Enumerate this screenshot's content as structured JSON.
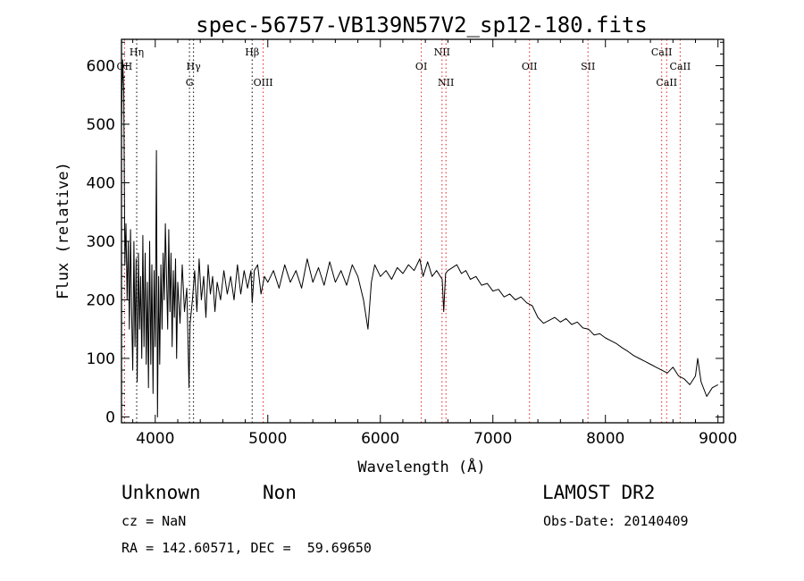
{
  "chart_data": {
    "type": "line",
    "title": "spec-56757-VB139N57V2_sp12-180.fits",
    "xlabel": "Wavelength (Å)",
    "ylabel": "Flux (relative)",
    "xlim": [
      3700,
      9050
    ],
    "ylim": [
      -10,
      645
    ],
    "xticks": [
      4000,
      5000,
      6000,
      7000,
      8000,
      9000
    ],
    "yticks": [
      0,
      100,
      200,
      300,
      400,
      500,
      600
    ],
    "grid": false,
    "series": [
      {
        "name": "",
        "color": "#000000",
        "points": [
          [
            3700,
            500
          ],
          [
            3710,
            610
          ],
          [
            3720,
            560
          ],
          [
            3730,
            260
          ],
          [
            3740,
            330
          ],
          [
            3750,
            200
          ],
          [
            3760,
            300
          ],
          [
            3770,
            150
          ],
          [
            3780,
            320
          ],
          [
            3790,
            180
          ],
          [
            3800,
            80
          ],
          [
            3810,
            300
          ],
          [
            3820,
            120
          ],
          [
            3830,
            270
          ],
          [
            3840,
            60
          ],
          [
            3850,
            280
          ],
          [
            3860,
            150
          ],
          [
            3870,
            240
          ],
          [
            3880,
            100
          ],
          [
            3890,
            310
          ],
          [
            3900,
            120
          ],
          [
            3910,
            280
          ],
          [
            3920,
            90
          ],
          [
            3930,
            230
          ],
          [
            3940,
            50
          ],
          [
            3950,
            300
          ],
          [
            3960,
            90
          ],
          [
            3970,
            260
          ],
          [
            3980,
            40
          ],
          [
            3990,
            250
          ],
          [
            4000,
            120
          ],
          [
            4010,
            455
          ],
          [
            4020,
            0
          ],
          [
            4030,
            240
          ],
          [
            4040,
            90
          ],
          [
            4050,
            260
          ],
          [
            4060,
            150
          ],
          [
            4070,
            280
          ],
          [
            4080,
            200
          ],
          [
            4090,
            330
          ],
          [
            4100,
            240
          ],
          [
            4110,
            150
          ],
          [
            4120,
            320
          ],
          [
            4130,
            180
          ],
          [
            4140,
            280
          ],
          [
            4150,
            120
          ],
          [
            4160,
            250
          ],
          [
            4170,
            170
          ],
          [
            4180,
            270
          ],
          [
            4190,
            100
          ],
          [
            4200,
            230
          ],
          [
            4220,
            160
          ],
          [
            4240,
            260
          ],
          [
            4260,
            180
          ],
          [
            4280,
            220
          ],
          [
            4300,
            50
          ],
          [
            4310,
            160
          ],
          [
            4330,
            200
          ],
          [
            4350,
            250
          ],
          [
            4370,
            180
          ],
          [
            4390,
            270
          ],
          [
            4410,
            200
          ],
          [
            4430,
            240
          ],
          [
            4450,
            170
          ],
          [
            4470,
            260
          ],
          [
            4490,
            210
          ],
          [
            4510,
            240
          ],
          [
            4530,
            180
          ],
          [
            4550,
            230
          ],
          [
            4580,
            200
          ],
          [
            4610,
            250
          ],
          [
            4640,
            210
          ],
          [
            4670,
            240
          ],
          [
            4700,
            200
          ],
          [
            4730,
            260
          ],
          [
            4760,
            210
          ],
          [
            4790,
            250
          ],
          [
            4820,
            220
          ],
          [
            4850,
            250
          ],
          [
            4861,
            195
          ],
          [
            4880,
            250
          ],
          [
            4910,
            260
          ],
          [
            4940,
            210
          ],
          [
            4970,
            240
          ],
          [
            5000,
            230
          ],
          [
            5050,
            250
          ],
          [
            5100,
            220
          ],
          [
            5150,
            260
          ],
          [
            5200,
            230
          ],
          [
            5250,
            250
          ],
          [
            5300,
            220
          ],
          [
            5350,
            270
          ],
          [
            5400,
            230
          ],
          [
            5450,
            255
          ],
          [
            5500,
            225
          ],
          [
            5550,
            265
          ],
          [
            5600,
            230
          ],
          [
            5650,
            250
          ],
          [
            5700,
            225
          ],
          [
            5750,
            260
          ],
          [
            5800,
            240
          ],
          [
            5850,
            200
          ],
          [
            5890,
            150
          ],
          [
            5920,
            230
          ],
          [
            5950,
            260
          ],
          [
            6000,
            240
          ],
          [
            6050,
            250
          ],
          [
            6100,
            235
          ],
          [
            6150,
            255
          ],
          [
            6200,
            245
          ],
          [
            6250,
            260
          ],
          [
            6300,
            250
          ],
          [
            6350,
            270
          ],
          [
            6380,
            240
          ],
          [
            6420,
            265
          ],
          [
            6460,
            240
          ],
          [
            6500,
            250
          ],
          [
            6550,
            235
          ],
          [
            6563,
            180
          ],
          [
            6580,
            245
          ],
          [
            6600,
            250
          ],
          [
            6640,
            255
          ],
          [
            6680,
            260
          ],
          [
            6720,
            245
          ],
          [
            6760,
            250
          ],
          [
            6800,
            235
          ],
          [
            6850,
            240
          ],
          [
            6900,
            225
          ],
          [
            6950,
            228
          ],
          [
            7000,
            215
          ],
          [
            7050,
            218
          ],
          [
            7100,
            205
          ],
          [
            7150,
            210
          ],
          [
            7200,
            200
          ],
          [
            7250,
            205
          ],
          [
            7300,
            195
          ],
          [
            7350,
            190
          ],
          [
            7400,
            170
          ],
          [
            7450,
            160
          ],
          [
            7500,
            165
          ],
          [
            7550,
            170
          ],
          [
            7600,
            162
          ],
          [
            7650,
            168
          ],
          [
            7700,
            158
          ],
          [
            7750,
            162
          ],
          [
            7800,
            152
          ],
          [
            7850,
            150
          ],
          [
            7900,
            140
          ],
          [
            7950,
            142
          ],
          [
            8000,
            135
          ],
          [
            8050,
            130
          ],
          [
            8100,
            125
          ],
          [
            8150,
            118
          ],
          [
            8200,
            112
          ],
          [
            8250,
            105
          ],
          [
            8300,
            100
          ],
          [
            8350,
            95
          ],
          [
            8400,
            90
          ],
          [
            8450,
            85
          ],
          [
            8500,
            80
          ],
          [
            8550,
            75
          ],
          [
            8600,
            85
          ],
          [
            8650,
            70
          ],
          [
            8700,
            65
          ],
          [
            8750,
            55
          ],
          [
            8800,
            70
          ],
          [
            8820,
            100
          ],
          [
            8850,
            60
          ],
          [
            8900,
            35
          ],
          [
            8950,
            50
          ],
          [
            9000,
            55
          ]
        ]
      }
    ],
    "line_markers": [
      {
        "name": "OII",
        "wavelength": 3727,
        "label_row": 2,
        "color": "#e02020"
      },
      {
        "name": "Hη",
        "wavelength": 3835,
        "label_row": 1,
        "color": "#000000"
      },
      {
        "name": "Hγ",
        "wavelength": 4340,
        "label_row": 2,
        "color": "#000000"
      },
      {
        "name": "G",
        "wavelength": 4304,
        "label_row": 3,
        "color": "#000000"
      },
      {
        "name": "Hβ",
        "wavelength": 4861,
        "label_row": 1,
        "color": "#000000"
      },
      {
        "name": "OIII",
        "wavelength": 4959,
        "label_row": 3,
        "color": "#e02020"
      },
      {
        "name": "OI",
        "wavelength": 6364,
        "label_row": 2,
        "color": "#e02020"
      },
      {
        "name": "NII",
        "wavelength": 6548,
        "label_row": 1,
        "color": "#e02020"
      },
      {
        "name": "NII",
        "wavelength": 6583,
        "label_row": 3,
        "color": "#e02020"
      },
      {
        "name": "OII",
        "wavelength": 7325,
        "label_row": 2,
        "color": "#e02020"
      },
      {
        "name": "SII",
        "wavelength": 7845,
        "label_row": 2,
        "color": "#e02020"
      },
      {
        "name": "CaII",
        "wavelength": 8500,
        "label_row": 1,
        "color": "#e02020"
      },
      {
        "name": "CaII",
        "wavelength": 8544,
        "label_row": 3,
        "color": "#e02020"
      },
      {
        "name": "CaII",
        "wavelength": 8664,
        "label_row": 2,
        "color": "#e02020"
      }
    ]
  },
  "info": {
    "class_label": "Unknown",
    "subclass_label": "Non",
    "survey_label": "LAMOST DR2",
    "redshift_label": "cz = NaN",
    "obs_date_label": "Obs-Date: 20140409",
    "coords_label": "RA = 142.60571, DEC =  59.69650"
  }
}
